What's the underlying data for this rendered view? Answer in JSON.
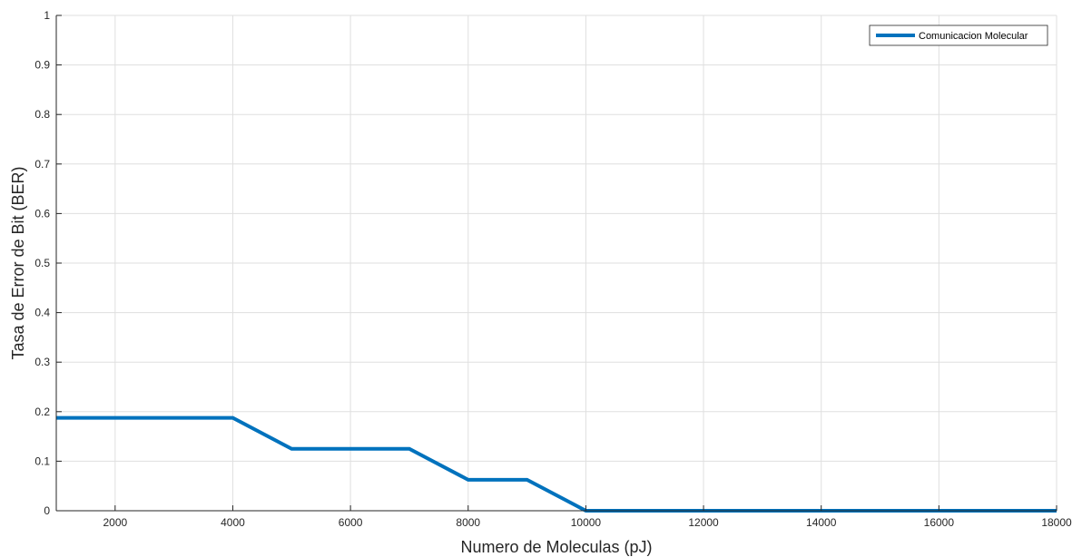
{
  "chart_data": {
    "type": "line",
    "title": "",
    "xlabel": "Numero de Moleculas (pJ)",
    "ylabel": "Tasa de Error de Bit (BER)",
    "xlim": [
      1000,
      18000
    ],
    "ylim": [
      0,
      1
    ],
    "xticks": [
      2000,
      4000,
      6000,
      8000,
      10000,
      12000,
      14000,
      16000,
      18000
    ],
    "yticks": [
      0,
      0.1,
      0.2,
      0.3,
      0.4,
      0.5,
      0.6,
      0.7,
      0.8,
      0.9,
      1
    ],
    "xtick_labels": [
      "2000",
      "4000",
      "6000",
      "8000",
      "10000",
      "12000",
      "14000",
      "16000",
      "18000"
    ],
    "ytick_labels": [
      "0",
      "0.1",
      "0.2",
      "0.3",
      "0.4",
      "0.5",
      "0.6",
      "0.7",
      "0.8",
      "0.9",
      "1"
    ],
    "grid": true,
    "legend_position": "top-right",
    "series": [
      {
        "name": "Comunicacion Molecular",
        "color": "#0072bd",
        "x": [
          1000,
          2000,
          3000,
          4000,
          5000,
          6000,
          7000,
          8000,
          9000,
          10000,
          11000,
          12000,
          13000,
          14000,
          15000,
          16000,
          17000,
          18000
        ],
        "y": [
          0.1875,
          0.1875,
          0.1875,
          0.1875,
          0.125,
          0.125,
          0.125,
          0.0625,
          0.0625,
          0,
          0,
          0,
          0,
          0,
          0,
          0,
          0,
          0
        ]
      }
    ]
  }
}
